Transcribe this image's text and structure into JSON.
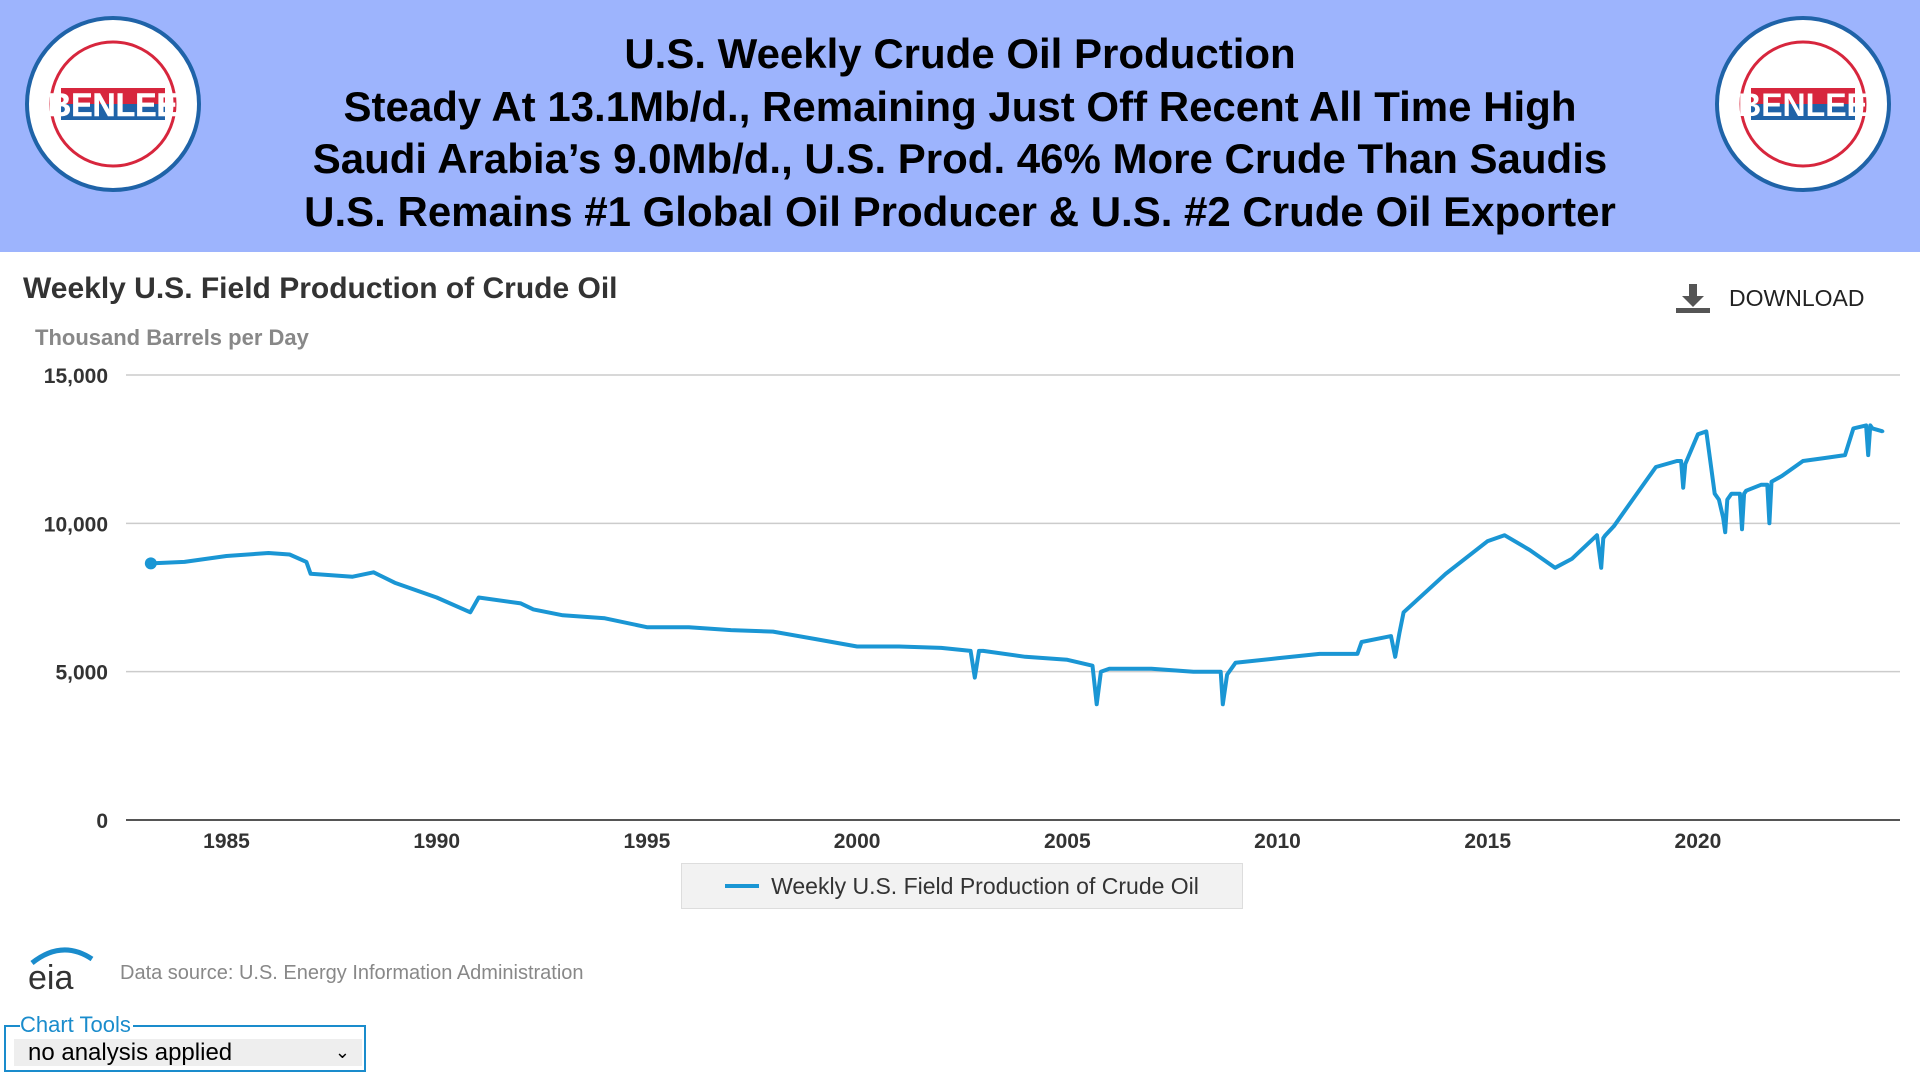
{
  "header": {
    "lines": [
      "U.S. Weekly Crude Oil Production",
      "Steady At 13.1Mb/d., Remaining Just Off Recent All Time High",
      "Saudi Arabia’s 9.0Mb/d., U.S. Prod. 46% More Crude Than Saudis",
      "U.S. Remains #1 Global Oil Producer & U.S. #2 Crude Oil Exporter"
    ],
    "logo": {
      "name": "BENLEE",
      "ring_text": "TARPS ★ ROLL-OFFS ★ DUMPS ★ LUGGERS ★ BENLEE.COM ★ 1-734-722-8100 ★ PARTS"
    }
  },
  "download_label": "DOWNLOAD",
  "footer": {
    "eia_logo": "eia",
    "source": "Data source: U.S. Energy Information Administration",
    "chart_tools_label": "Chart Tools",
    "analysis_selected": "no analysis applied"
  },
  "colors": {
    "series": "#1a96d4",
    "header_bg": "#9db4fd",
    "grid": "#cccccc"
  },
  "chart_data": {
    "type": "line",
    "title": "Weekly U.S. Field Production of Crude Oil",
    "ylabel": "Thousand Barrels per Day",
    "xlabel": "",
    "ylim": [
      0,
      15000
    ],
    "xlim": [
      1982.6,
      2024.9
    ],
    "yticks": [
      "0",
      "5,000",
      "10,000",
      "15,000"
    ],
    "ytick_values": [
      0,
      5000,
      10000,
      15000
    ],
    "xticks": [
      "1985",
      "1990",
      "1995",
      "2000",
      "2005",
      "2010",
      "2015",
      "2020"
    ],
    "grid": true,
    "legend": "bottom-center",
    "series": [
      {
        "name": "Weekly U.S. Field Production of Crude Oil",
        "x": [
          1983.2,
          1984,
          1985,
          1986,
          1986.5,
          1986.9,
          1987,
          1988,
          1988.5,
          1989,
          1990,
          1990.8,
          1991,
          1992,
          1992.3,
          1993,
          1994,
          1995,
          1996,
          1997,
          1998,
          1999,
          2000,
          2001,
          2002,
          2002.7,
          2002.8,
          2002.9,
          2003,
          2004,
          2005,
          2005.6,
          2005.7,
          2005.8,
          2006,
          2007,
          2008,
          2008.65,
          2008.7,
          2008.8,
          2009,
          2010,
          2011,
          2011.9,
          2012,
          2012.7,
          2012.8,
          2012.9,
          2013,
          2014,
          2015,
          2015.4,
          2016,
          2016.6,
          2017,
          2017.6,
          2017.7,
          2017.75,
          2017.8,
          2018,
          2018.5,
          2019,
          2019.5,
          2019.6,
          2019.65,
          2019.7,
          2020,
          2020.2,
          2020.4,
          2020.5,
          2020.6,
          2020.65,
          2020.7,
          2020.8,
          2021,
          2021.05,
          2021.1,
          2021.15,
          2021.5,
          2021.65,
          2021.7,
          2021.75,
          2022,
          2022.5,
          2023,
          2023.5,
          2023.7,
          2024,
          2024.05,
          2024.1,
          2024.15,
          2024.4
        ],
        "y": [
          8650,
          8700,
          8900,
          9000,
          8950,
          8700,
          8300,
          8200,
          8350,
          8000,
          7500,
          7000,
          7500,
          7300,
          7100,
          6900,
          6800,
          6500,
          6500,
          6400,
          6350,
          6100,
          5850,
          5850,
          5800,
          5700,
          4800,
          5700,
          5700,
          5500,
          5400,
          5200,
          3900,
          5000,
          5100,
          5100,
          5000,
          5000,
          3900,
          4900,
          5300,
          5450,
          5600,
          5600,
          6000,
          6200,
          5500,
          6300,
          7000,
          8300,
          9400,
          9600,
          9100,
          8500,
          8800,
          9600,
          8500,
          9500,
          9600,
          9900,
          10900,
          11900,
          12100,
          12100,
          11200,
          12000,
          13000,
          13100,
          11000,
          10800,
          10200,
          9700,
          10800,
          11000,
          11000,
          9800,
          11000,
          11100,
          11300,
          11300,
          10000,
          11400,
          11600,
          12100,
          12200,
          12300,
          13200,
          13300,
          12300,
          13300,
          13200,
          13100
        ]
      }
    ]
  }
}
